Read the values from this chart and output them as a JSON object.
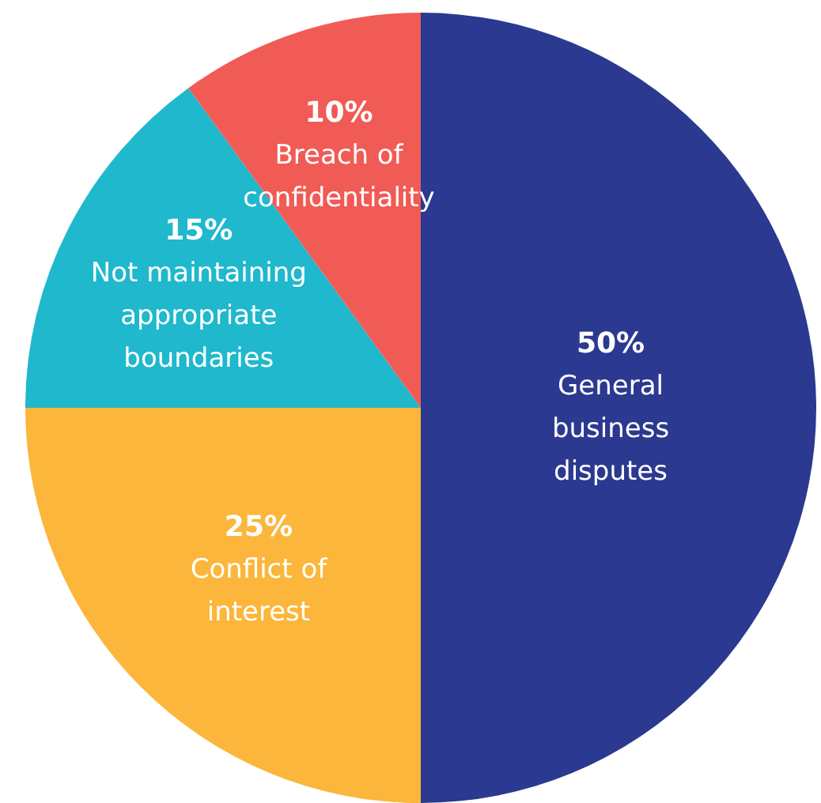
{
  "chart_data": {
    "type": "pie",
    "categories": [
      "General business disputes",
      "Conflict of interest",
      "Not maintaining appropriate boundaries",
      "Breach of confidentiality"
    ],
    "values": [
      50,
      25,
      15,
      10
    ],
    "value_labels": [
      "50%",
      "25%",
      "15%",
      "10%"
    ],
    "colors": [
      "#2b3990",
      "#fbb63b",
      "#1fb8cd",
      "#f15b55"
    ]
  }
}
